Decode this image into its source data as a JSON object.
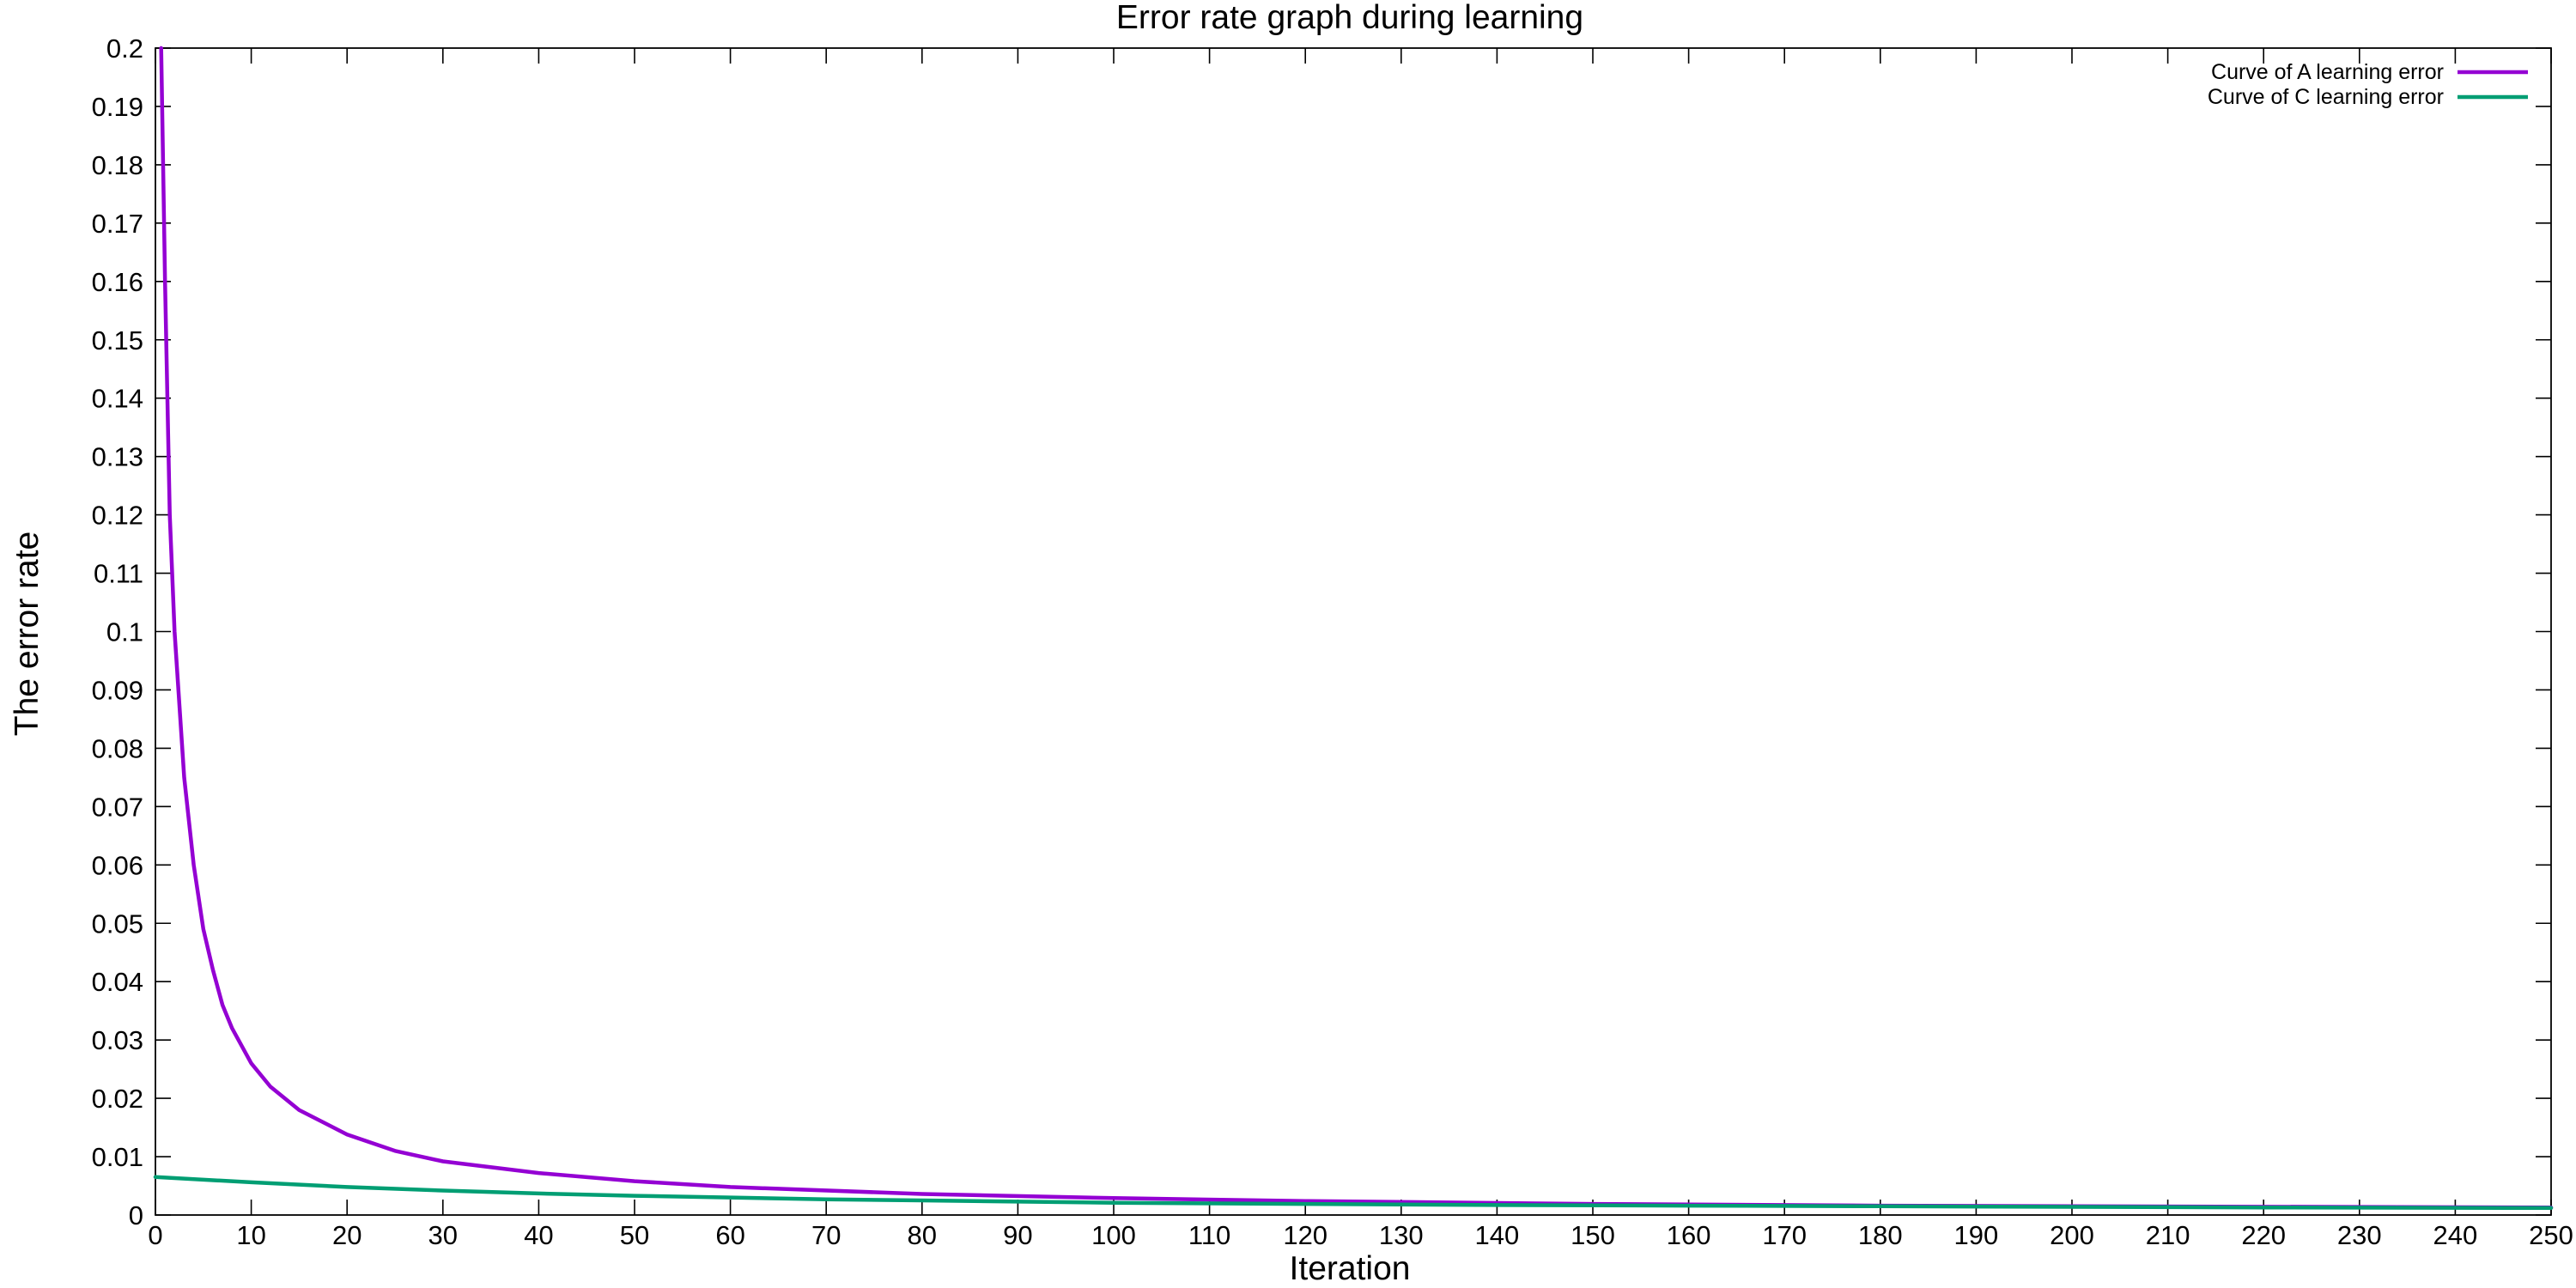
{
  "chart_data": {
    "type": "line",
    "title": "Error rate graph during learning",
    "xlabel": "Iteration",
    "ylabel": "The error rate",
    "xlim": [
      0,
      250
    ],
    "ylim": [
      0,
      0.2
    ],
    "xticks": [
      0,
      10,
      20,
      30,
      40,
      50,
      60,
      70,
      80,
      90,
      100,
      110,
      120,
      130,
      140,
      150,
      160,
      170,
      180,
      190,
      200,
      210,
      220,
      230,
      240,
      250
    ],
    "yticks": [
      "0",
      "0.01",
      "0.02",
      "0.03",
      "0.04",
      "0.05",
      "0.06",
      "0.07",
      "0.08",
      "0.09",
      "0.1",
      "0.11",
      "0.12",
      "0.13",
      "0.14",
      "0.15",
      "0.16",
      "0.17",
      "0.18",
      "0.19",
      "0.2"
    ],
    "grid": false,
    "legend_position": "top-right",
    "series": [
      {
        "name": "Curve of A learning error",
        "color": "#9400d3",
        "x": [
          0.6,
          1,
          1.5,
          2,
          3,
          4,
          5,
          6,
          7,
          8,
          10,
          12,
          15,
          20,
          25,
          30,
          40,
          50,
          60,
          80,
          100,
          120,
          150,
          180,
          200,
          250
        ],
        "y": [
          0.2,
          0.16,
          0.12,
          0.1,
          0.075,
          0.06,
          0.049,
          0.042,
          0.036,
          0.032,
          0.026,
          0.022,
          0.018,
          0.0138,
          0.011,
          0.0092,
          0.0072,
          0.0058,
          0.0048,
          0.0036,
          0.0029,
          0.0024,
          0.0019,
          0.0016,
          0.0015,
          0.0013
        ]
      },
      {
        "name": "Curve of C learning error",
        "color": "#009e73",
        "x": [
          0,
          10,
          20,
          30,
          40,
          50,
          60,
          70,
          80,
          90,
          100,
          120,
          140,
          160,
          180,
          200,
          220,
          250
        ],
        "y": [
          0.0065,
          0.0056,
          0.0048,
          0.0042,
          0.0037,
          0.0033,
          0.003,
          0.0027,
          0.0025,
          0.0023,
          0.0021,
          0.0019,
          0.0017,
          0.0016,
          0.0015,
          0.0014,
          0.0013,
          0.0012
        ]
      }
    ]
  }
}
